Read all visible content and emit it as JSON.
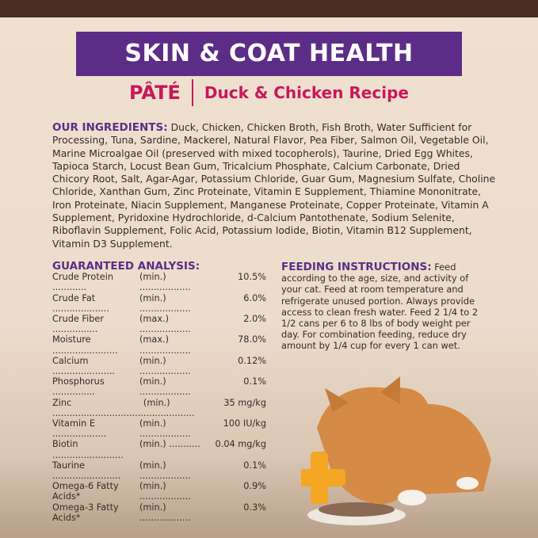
{
  "banner": {
    "title": "SKIN & COAT HEALTH"
  },
  "subtitle": {
    "format": "PÂTÉ",
    "recipe": "Duck & Chicken Recipe"
  },
  "ingredients": {
    "heading": "OUR INGREDIENTS:",
    "text": " Duck, Chicken, Chicken Broth, Fish Broth, Water Sufficient for Processing, Tuna, Sardine, Mackerel, Natural Flavor, Pea Fiber, Salmon Oil, Vegetable Oil, Marine Microalgae Oil (preserved with mixed tocopherols), Taurine, Dried Egg Whites, Tapioca Starch, Locust Bean Gum, Tricalcium Phosphate, Calcium Carbonate, Dried Chicory Root, Salt, Agar-Agar, Potassium Chloride, Guar Gum, Magnesium Sulfate, Choline Chloride, Xanthan Gum, Zinc Proteinate, Vitamin E Supplement, Thiamine Mononitrate, Iron Proteinate, Niacin Supplement, Manganese Proteinate, Copper Proteinate, Vitamin A Supplement, Pyridoxine Hydrochloride, d-Calcium Pantothenate, Sodium Selenite, Riboflavin Supplement, Folic Acid, Potassium Iodide, Biotin, Vitamin B12 Supplement, Vitamin D3 Supplement."
  },
  "analysis": {
    "heading": "GUARANTEED ANALYSIS:",
    "rows": [
      {
        "name": "Crude Protein ............",
        "qual": "(min.) ..................",
        "value": "10.5%"
      },
      {
        "name": "Crude Fat ....................",
        "qual": "(min.) ..................",
        "value": "6.0%"
      },
      {
        "name": "Crude Fiber ................",
        "qual": "(max.) ..................",
        "value": "2.0%"
      },
      {
        "name": "Moisture .......................",
        "qual": "(max.) ..................",
        "value": "78.0%"
      },
      {
        "name": "Calcium ......................",
        "qual": "(min.) ..................",
        "value": "0.12%"
      },
      {
        "name": "Phosphorus ...............",
        "qual": "(min.) ..................",
        "value": "0.1%"
      },
      {
        "name": "Zinc ................................",
        "qual": "(min.) ..................",
        "value": "35 mg/kg"
      },
      {
        "name": "Vitamin E ...................",
        "qual": "(min.) ..................",
        "value": "100 IU/kg"
      },
      {
        "name": "Biotin .........................",
        "qual": "(min.) ...........",
        "value": "0.04 mg/kg"
      },
      {
        "name": "Taurine ........................",
        "qual": "(min.) ..................",
        "value": "0.1%"
      },
      {
        "name": "Omega-6 Fatty Acids*",
        "qual": "(min.) ..................",
        "value": "0.9%"
      },
      {
        "name": "Omega-3 Fatty Acids*",
        "qual": "(min.) ..................",
        "value": "0.3%"
      }
    ]
  },
  "feeding": {
    "heading": "FEEDING INSTRUCTIONS:",
    "text": " Feed according to the age, size, and activity of your cat. Feed at room temperature and refrigerate unused portion. Always provide access to clean fresh water. Feed 2 1/4 to 2 1/2 cans per 6 to 8 lbs of body weight per day. For combination feeding, reduce dry amount by 1/4 cup for every 1 can wet."
  },
  "colors": {
    "banner": "#5c2d86",
    "accent": "#c8185a",
    "topbar": "#4a2e22",
    "background": "#ecdccb"
  }
}
